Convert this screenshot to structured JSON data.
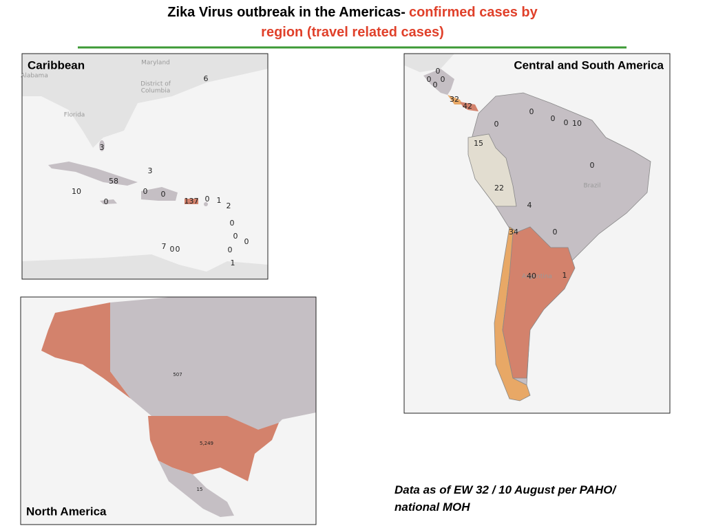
{
  "header": {
    "title_parts": [
      "Zika Virus outbreak in the Americas-",
      "confirmed cases by",
      "region (travel related cases)"
    ]
  },
  "panels": [
    {
      "label": "Caribbean",
      "map_labels": [
        "Maryland",
        "Alabama",
        "District of",
        "Columbia",
        "Florida"
      ],
      "counts": [
        "6",
        "3",
        "3",
        "58",
        "10",
        "0",
        "0",
        "0",
        "137",
        "0",
        "1",
        "2",
        "0",
        "0",
        "0",
        "7",
        "0",
        "0",
        "0",
        "1"
      ]
    },
    {
      "label": "Central and South America",
      "map_labels": [
        "Brazil",
        "Argentina"
      ],
      "counts": [
        "0",
        "0",
        "0",
        "0",
        "32",
        "42",
        "0",
        "0",
        "0",
        "10",
        "0",
        "15",
        "0",
        "22",
        "4",
        "34",
        "0",
        "40",
        "1"
      ]
    },
    {
      "label": "North America",
      "map_labels": [],
      "counts": [
        "507",
        "5,249",
        "15"
      ]
    }
  ],
  "note": [
    "Data as of EW 32 / 10 August per PAHO/",
    "national MOH"
  ]
}
